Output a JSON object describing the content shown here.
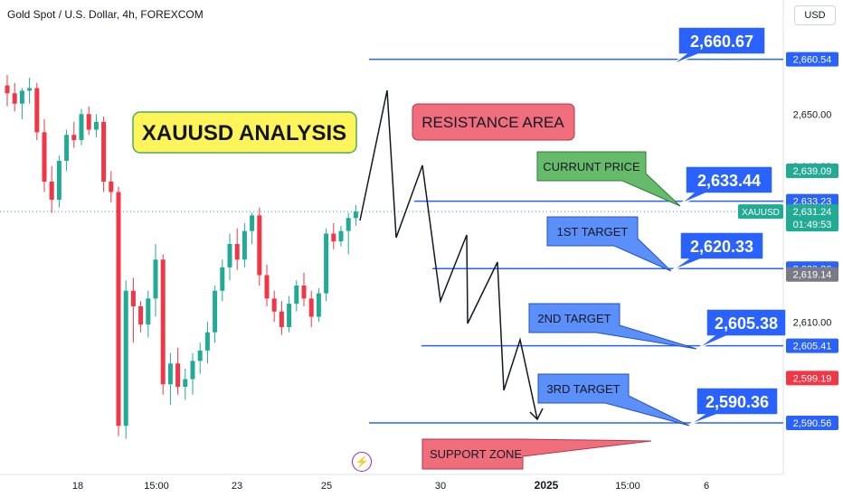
{
  "header": {
    "symbol_title": "Gold Spot / U.S. Dollar, 4h, FOREXCOM",
    "currency": "USD"
  },
  "chart_data": {
    "type": "candlestick",
    "ylim": [
      2585,
      2665
    ],
    "y_ticks": [
      "2,650.00",
      "2,640.00",
      "2,620.00",
      "2,610.00",
      "2,600.00"
    ],
    "x_tick_labels": [
      "18",
      "15:00",
      "23",
      "25",
      "30",
      "2025",
      "15:00",
      "6"
    ],
    "candles": [
      {
        "o": 2655.5,
        "h": 2657.5,
        "l": 2651.5,
        "c": 2654.0
      },
      {
        "o": 2654.0,
        "h": 2656.0,
        "l": 2650.5,
        "c": 2652.0
      },
      {
        "o": 2652.0,
        "h": 2655.0,
        "l": 2649.0,
        "c": 2654.5
      },
      {
        "o": 2654.5,
        "h": 2657.0,
        "l": 2652.0,
        "c": 2655.0
      },
      {
        "o": 2655.0,
        "h": 2656.0,
        "l": 2645.0,
        "c": 2646.5
      },
      {
        "o": 2646.5,
        "h": 2649.0,
        "l": 2635.0,
        "c": 2637.0
      },
      {
        "o": 2637.0,
        "h": 2640.0,
        "l": 2631.0,
        "c": 2633.5
      },
      {
        "o": 2633.5,
        "h": 2642.0,
        "l": 2632.0,
        "c": 2641.0
      },
      {
        "o": 2641.0,
        "h": 2647.0,
        "l": 2639.0,
        "c": 2646.0
      },
      {
        "o": 2646.0,
        "h": 2648.5,
        "l": 2643.5,
        "c": 2645.0
      },
      {
        "o": 2645.0,
        "h": 2651.0,
        "l": 2644.0,
        "c": 2650.0
      },
      {
        "o": 2650.0,
        "h": 2651.5,
        "l": 2646.0,
        "c": 2647.0
      },
      {
        "o": 2647.0,
        "h": 2650.0,
        "l": 2645.5,
        "c": 2648.5
      },
      {
        "o": 2648.5,
        "h": 2649.5,
        "l": 2635.0,
        "c": 2637.0
      },
      {
        "o": 2637.0,
        "h": 2639.0,
        "l": 2633.0,
        "c": 2635.0
      },
      {
        "o": 2635.0,
        "h": 2636.0,
        "l": 2588.0,
        "c": 2590.0
      },
      {
        "o": 2590.0,
        "h": 2618.0,
        "l": 2587.5,
        "c": 2616.0
      },
      {
        "o": 2616.0,
        "h": 2618.5,
        "l": 2606.0,
        "c": 2613.0
      },
      {
        "o": 2613.0,
        "h": 2614.0,
        "l": 2608.0,
        "c": 2609.5
      },
      {
        "o": 2609.5,
        "h": 2616.0,
        "l": 2607.0,
        "c": 2614.5
      },
      {
        "o": 2614.5,
        "h": 2625.0,
        "l": 2611.0,
        "c": 2622.0
      },
      {
        "o": 2622.0,
        "h": 2623.0,
        "l": 2596.0,
        "c": 2598.0
      },
      {
        "o": 2598.0,
        "h": 2604.0,
        "l": 2594.0,
        "c": 2602.0
      },
      {
        "o": 2602.0,
        "h": 2605.0,
        "l": 2596.0,
        "c": 2597.5
      },
      {
        "o": 2597.5,
        "h": 2601.0,
        "l": 2595.0,
        "c": 2599.0
      },
      {
        "o": 2599.0,
        "h": 2604.0,
        "l": 2596.0,
        "c": 2602.5
      },
      {
        "o": 2602.5,
        "h": 2606.0,
        "l": 2600.0,
        "c": 2604.5
      },
      {
        "o": 2604.5,
        "h": 2610.0,
        "l": 2602.0,
        "c": 2608.0
      },
      {
        "o": 2608.0,
        "h": 2617.0,
        "l": 2606.0,
        "c": 2616.0
      },
      {
        "o": 2616.0,
        "h": 2622.0,
        "l": 2614.0,
        "c": 2620.5
      },
      {
        "o": 2620.5,
        "h": 2627.0,
        "l": 2618.0,
        "c": 2625.0
      },
      {
        "o": 2625.0,
        "h": 2628.0,
        "l": 2620.0,
        "c": 2622.0
      },
      {
        "o": 2622.0,
        "h": 2629.0,
        "l": 2620.5,
        "c": 2627.5
      },
      {
        "o": 2627.5,
        "h": 2631.0,
        "l": 2625.0,
        "c": 2630.5
      },
      {
        "o": 2630.5,
        "h": 2632.0,
        "l": 2617.0,
        "c": 2619.0
      },
      {
        "o": 2619.0,
        "h": 2621.0,
        "l": 2613.0,
        "c": 2614.5
      },
      {
        "o": 2614.5,
        "h": 2616.0,
        "l": 2610.0,
        "c": 2612.0
      },
      {
        "o": 2612.0,
        "h": 2614.0,
        "l": 2607.5,
        "c": 2609.0
      },
      {
        "o": 2609.0,
        "h": 2615.0,
        "l": 2608.0,
        "c": 2613.5
      },
      {
        "o": 2613.5,
        "h": 2618.0,
        "l": 2612.0,
        "c": 2617.0
      },
      {
        "o": 2617.0,
        "h": 2619.5,
        "l": 2613.0,
        "c": 2614.5
      },
      {
        "o": 2614.5,
        "h": 2616.0,
        "l": 2609.0,
        "c": 2611.0
      },
      {
        "o": 2611.0,
        "h": 2616.5,
        "l": 2610.0,
        "c": 2615.5
      },
      {
        "o": 2615.5,
        "h": 2628.0,
        "l": 2614.0,
        "c": 2627.0
      },
      {
        "o": 2627.0,
        "h": 2629.0,
        "l": 2624.0,
        "c": 2625.5
      },
      {
        "o": 2625.5,
        "h": 2628.5,
        "l": 2624.5,
        "c": 2627.5
      },
      {
        "o": 2627.5,
        "h": 2631.0,
        "l": 2623.0,
        "c": 2630.0
      },
      {
        "o": 2630.0,
        "h": 2632.5,
        "l": 2628.5,
        "c": 2631.24
      }
    ],
    "price_levels": [
      {
        "label": "2,660.54",
        "value": 2660.54,
        "x0": 408
      },
      {
        "label": "2,633.23",
        "value": 2633.23,
        "x0": 458
      },
      {
        "label": "2,620.26",
        "value": 2620.26,
        "x0": 478
      },
      {
        "label": "2,605.41",
        "value": 2605.41,
        "x0": 466
      },
      {
        "label": "2,590.56",
        "value": 2590.56,
        "x0": 408
      }
    ],
    "axis_tags": [
      {
        "label": "2,639.09",
        "value": 2639.09,
        "color": "#22ab94"
      },
      {
        "label": "2,619.14",
        "value": 2619.14,
        "color": "#787b86"
      },
      {
        "label": "2,599.19",
        "value": 2599.19,
        "color": "#f23645"
      }
    ],
    "current": {
      "symbol": "XAUUSD",
      "price": "2,631.24",
      "countdown": "01:49:53",
      "value": 2631.24
    },
    "projection_path": [
      [
        2626.0,
        2662.0
      ],
      [
        2634.0,
        2652.0
      ],
      [
        2639.0,
        2659.0
      ],
      [
        2647.0,
        2645.0
      ],
      [
        2657.0,
        2636.0
      ],
      [
        2664.0,
        2654.0
      ],
      [
        2671.0,
        2619.0
      ],
      [
        2678.0,
        2607.5
      ],
      [
        2687.0,
        2613.0
      ],
      [
        2694.0,
        2593.0
      ],
      [
        2700.0,
        2603.0
      ],
      [
        2707.0,
        2590.0
      ]
    ],
    "annotations": {
      "title_box": "XAUUSD ANALYSIS",
      "resistance": "RESISTANCE AREA",
      "support": "SUPPORT ZONE",
      "labels": [
        {
          "text": "CURRUNT PRICE",
          "style": "green"
        },
        {
          "text": "1ST TARGET",
          "style": "blue"
        },
        {
          "text": "2ND TARGET",
          "style": "blue"
        },
        {
          "text": "3RD TARGET",
          "style": "blue"
        }
      ],
      "price_callouts": [
        "2,660.67",
        "2,633.44",
        "2,620.33",
        "2,605.38",
        "2,590.36"
      ]
    }
  }
}
